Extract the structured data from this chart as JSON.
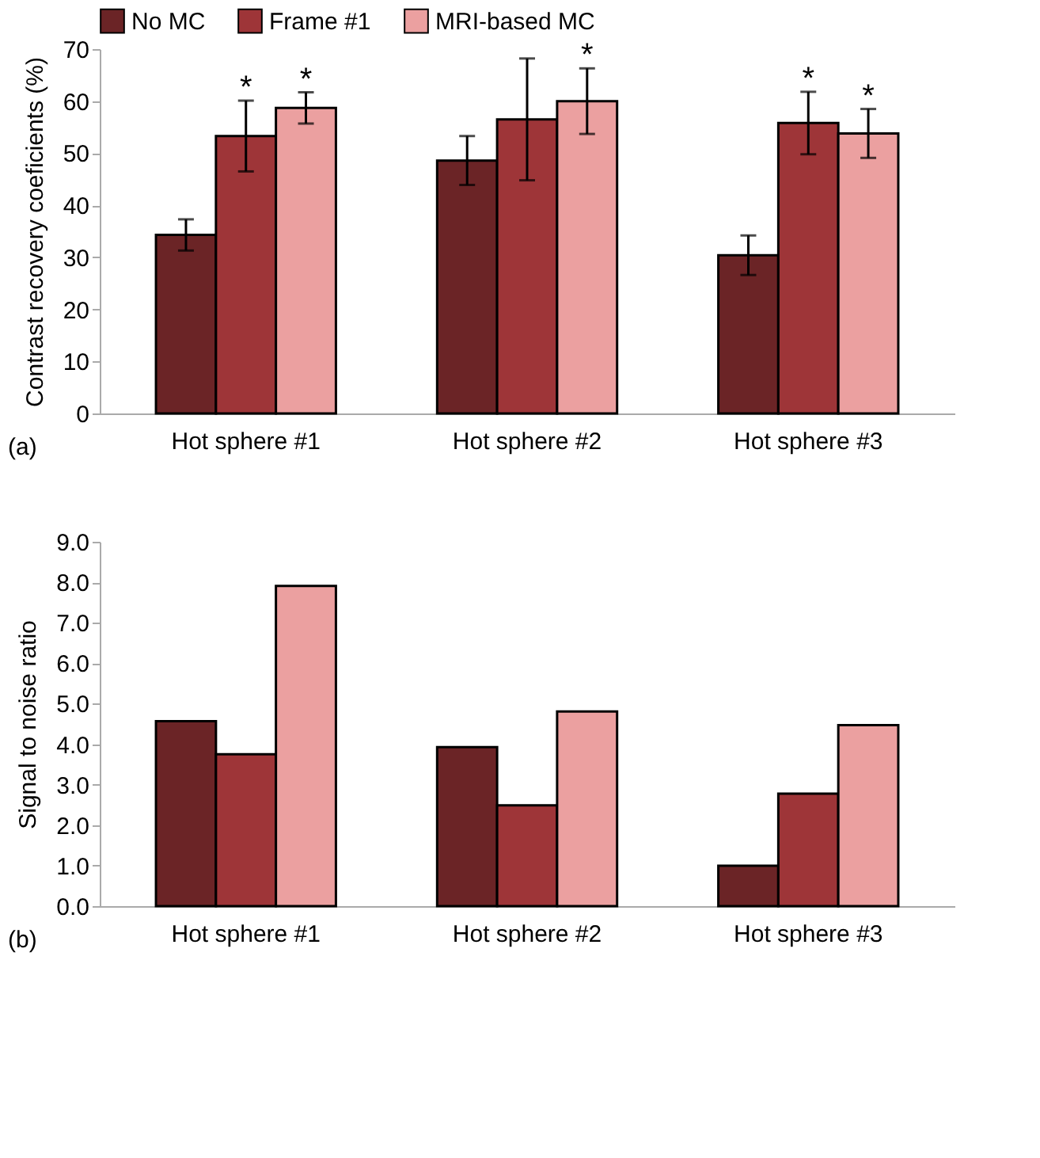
{
  "chart_data": [
    {
      "type": "bar",
      "categories": [
        "Hot sphere #1",
        "Hot sphere #2",
        "Hot sphere #3"
      ],
      "ylabel": "Contrast recovery coeficients (%)",
      "ylim": [
        0,
        70
      ],
      "yticks": [
        0,
        10,
        20,
        30,
        40,
        50,
        60,
        70
      ],
      "grid": false,
      "legend": "top",
      "series": [
        {
          "name": "No MC",
          "color": "#6b2426",
          "values": [
            34.3,
            48.6,
            30.4
          ],
          "errors": [
            3.0,
            4.7,
            3.8
          ]
        },
        {
          "name": "Frame #1",
          "color": "#9e3538",
          "values": [
            53.3,
            56.5,
            55.8
          ],
          "errors": [
            6.8,
            11.7,
            6.0
          ]
        },
        {
          "name": "MRI-based MC",
          "color": "#eba0a0",
          "values": [
            58.7,
            60.0,
            53.8
          ],
          "errors": [
            3.0,
            6.3,
            4.7
          ]
        }
      ],
      "annotations": [
        {
          "text": "*",
          "x": "Hot sphere #1",
          "y": 60.1
        },
        {
          "text": "*",
          "x": "Hot sphere #1",
          "y": 61.7
        },
        {
          "text": "*",
          "x": "Hot sphere #2",
          "y": 66.3
        },
        {
          "text": "*",
          "x": "Hot sphere #3",
          "y": 61.8
        },
        {
          "text": "*",
          "x": "Hot sphere #3",
          "y": 58.5
        },
        "(a)"
      ]
    },
    {
      "type": "bar",
      "categories": [
        "Hot sphere #1",
        "Hot sphere #2",
        "Hot sphere #3"
      ],
      "ylabel": "Signal to noise ratio",
      "ylim": [
        0,
        9
      ],
      "grid": false,
      "legend": false,
      "yticks": [
        {
          "value": 0,
          "label": "0.0"
        },
        {
          "value": 1,
          "label": "1.0"
        },
        {
          "value": 2,
          "label": "2.0"
        },
        {
          "value": 3,
          "label": "3.0"
        },
        {
          "value": 4,
          "label": "4.0"
        },
        {
          "value": 5,
          "label": "5.0"
        },
        {
          "value": 6,
          "label": "6.0"
        },
        {
          "value": 7,
          "label": "7.0"
        },
        {
          "value": 8,
          "label": "8.0"
        },
        {
          "value": 9,
          "label": "9.0"
        }
      ],
      "series": [
        {
          "color": "#6b2426",
          "values": [
            4.57,
            3.93,
            1.0
          ]
        },
        {
          "color": "#9e3538",
          "values": [
            3.75,
            2.49,
            2.78
          ]
        },
        {
          "color": "#eba0a0",
          "values": [
            7.91,
            4.81,
            4.47
          ]
        }
      ],
      "annotations": [
        "(b)"
      ]
    }
  ]
}
